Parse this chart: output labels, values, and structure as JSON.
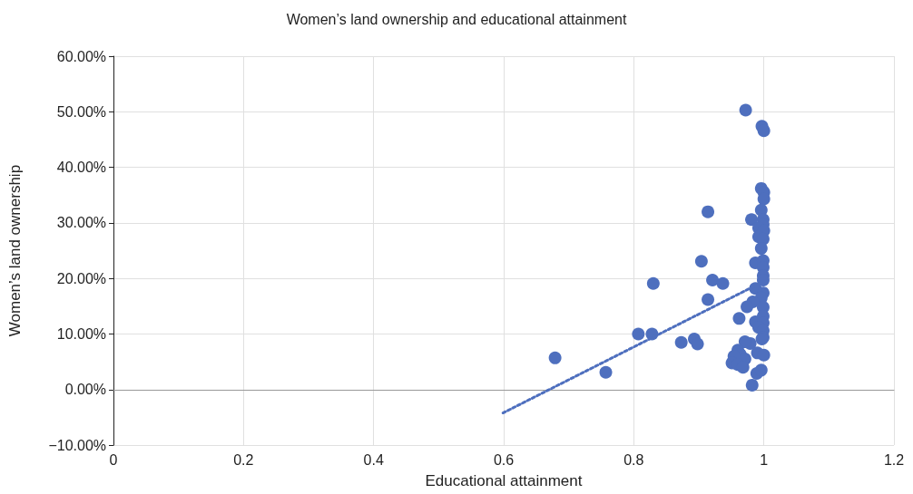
{
  "chart_data": {
    "type": "scatter",
    "title": "Women’s land ownership and educational attainment",
    "xlabel": "Educational attainment",
    "ylabel": "Women’s land ownership",
    "xlim": [
      0,
      1.2
    ],
    "xticks": [
      0,
      0.2,
      0.4,
      0.6,
      0.8,
      1,
      1.2
    ],
    "ylim": [
      -10,
      60
    ],
    "yticks": [
      {
        "value": -10,
        "label": "−10.00%"
      },
      {
        "value": 0,
        "label": "0.00%"
      },
      {
        "value": 10,
        "label": "10.00%"
      },
      {
        "value": 20,
        "label": "20.00%"
      },
      {
        "value": 30,
        "label": "30.00%"
      },
      {
        "value": 40,
        "label": "40.00%"
      },
      {
        "value": 50,
        "label": "50.00%"
      },
      {
        "value": 60,
        "label": "60.00%"
      }
    ],
    "grid": true,
    "marker": "circle",
    "series": [
      {
        "color": "#4e6fbe",
        "x": [
          0.679,
          0.757,
          0.807,
          0.828,
          0.83,
          0.873,
          0.893,
          0.898,
          0.904,
          0.914,
          0.914,
          0.921,
          0.937,
          0.962,
          0.972,
          0.997,
          1.0,
          0.996,
          1.0,
          1.0,
          0.981,
          0.996,
          0.999,
          0.999,
          0.992,
          1.0,
          0.992,
          0.999,
          0.996,
          0.987,
          0.999,
          0.999,
          0.999,
          0.999,
          0.987,
          0.999,
          0.996,
          0.983,
          0.974,
          0.999,
          0.999,
          0.987,
          0.999,
          0.992,
          0.999,
          0.999,
          0.997,
          0.979,
          0.971,
          0.96,
          0.964,
          0.971,
          0.954,
          0.951,
          0.96,
          0.968,
          0.99,
          1.0,
          0.989,
          0.996,
          0.982
        ],
        "values": [
          5.7,
          3.1,
          10.0,
          10.0,
          19.1,
          8.5,
          9.1,
          8.2,
          23.1,
          32.0,
          16.2,
          19.7,
          19.1,
          12.8,
          50.3,
          47.4,
          46.6,
          36.2,
          35.5,
          34.3,
          30.6,
          32.3,
          30.6,
          29.7,
          29.1,
          28.6,
          27.5,
          27.1,
          25.4,
          22.8,
          23.2,
          22.0,
          20.5,
          19.7,
          18.2,
          17.4,
          16.5,
          15.8,
          14.9,
          14.8,
          13.2,
          12.2,
          12.0,
          11.2,
          10.6,
          9.4,
          9.1,
          8.3,
          8.6,
          7.1,
          6.3,
          5.5,
          6.0,
          4.8,
          4.5,
          4.0,
          6.6,
          6.2,
          2.9,
          3.5,
          0.8
        ]
      },
      {
        "type": "line",
        "color": "#4e6fbe",
        "line_style": "dotted",
        "marker": "none",
        "x": [
          0.599,
          0.985
        ],
        "values": [
          -4.2,
          18.6
        ]
      }
    ]
  }
}
